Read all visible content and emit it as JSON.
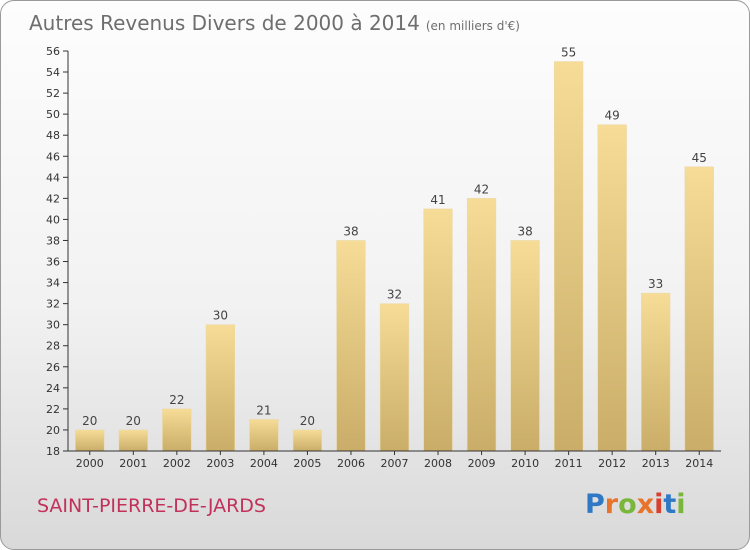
{
  "header": {
    "title": "Autres Revenus Divers de 2000 à 2014",
    "subtitle": "(en milliers d'€)"
  },
  "footer": {
    "commune": "SAINT-PIERRE-DE-JARDS",
    "logo_text": "Proxiti"
  },
  "colors": {
    "bar_light": "#f6dc96",
    "bar_dark": "#c9ad68",
    "commune_text": "#c2315a",
    "logo_letters": [
      "#2f78c6",
      "#e8732a",
      "#79b63a",
      "#e8732a",
      "#d8412f",
      "#2f78c6",
      "#79b63a"
    ]
  },
  "chart_data": {
    "type": "bar",
    "title": "Autres Revenus Divers de 2000 à 2014",
    "subtitle": "(en milliers d'€)",
    "categories": [
      "2000",
      "2001",
      "2002",
      "2003",
      "2004",
      "2005",
      "2006",
      "2007",
      "2008",
      "2009",
      "2010",
      "2011",
      "2012",
      "2013",
      "2014"
    ],
    "values": [
      20,
      20,
      22,
      30,
      21,
      20,
      38,
      32,
      41,
      42,
      38,
      55,
      49,
      33,
      45
    ],
    "ylim": [
      18,
      56
    ],
    "ytick_step": 2,
    "grid": false,
    "data_labels": true
  }
}
